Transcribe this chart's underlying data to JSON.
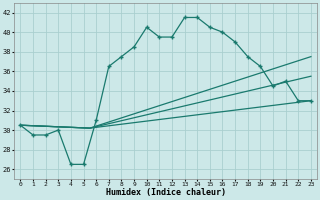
{
  "xlabel": "Humidex (Indice chaleur)",
  "ylabel": "",
  "xlim": [
    -0.5,
    23.5
  ],
  "ylim": [
    25,
    43
  ],
  "yticks": [
    26,
    28,
    30,
    32,
    34,
    36,
    38,
    40,
    42
  ],
  "xticks": [
    0,
    1,
    2,
    3,
    4,
    5,
    6,
    7,
    8,
    9,
    10,
    11,
    12,
    13,
    14,
    15,
    16,
    17,
    18,
    19,
    20,
    21,
    22,
    23
  ],
  "bg_color": "#cce8e8",
  "line_color": "#1a7a6e",
  "grid_color": "#aacfcf",
  "line1_x": [
    0,
    1,
    2,
    3,
    4,
    5,
    6,
    7,
    8,
    9,
    10,
    11,
    12,
    13,
    14,
    15,
    16,
    17,
    18,
    19,
    20,
    21,
    22,
    23
  ],
  "line1_y": [
    30.5,
    29.5,
    29.5,
    30.0,
    26.5,
    26.5,
    31.0,
    36.5,
    37.5,
    38.5,
    40.5,
    39.5,
    39.5,
    41.5,
    41.5,
    40.5,
    40.0,
    39.0,
    37.5,
    36.5,
    34.5,
    35.0,
    33.0,
    33.0
  ],
  "line2_x": [
    0,
    5.5,
    23
  ],
  "line2_y": [
    30.5,
    30.2,
    33.0
  ],
  "line3_x": [
    0,
    5.5,
    23
  ],
  "line3_y": [
    30.5,
    30.2,
    35.5
  ],
  "line4_x": [
    0,
    5.5,
    23
  ],
  "line4_y": [
    30.5,
    30.2,
    37.5
  ]
}
